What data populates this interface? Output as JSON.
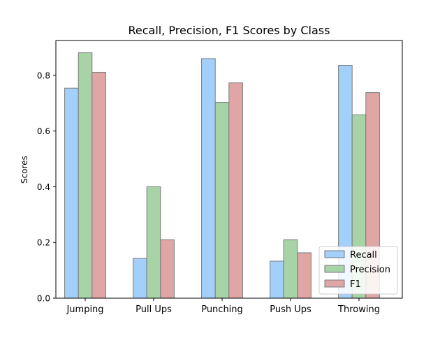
{
  "chart_data": {
    "type": "bar",
    "title": "Recall, Precision, F1 Scores by Class",
    "xlabel": "",
    "ylabel": "Scores",
    "categories": [
      "Jumping",
      "Pull Ups",
      "Punching",
      "Push Ups",
      "Throwing"
    ],
    "series": [
      {
        "name": "Recall",
        "values": [
          0.754,
          0.143,
          0.86,
          0.133,
          0.836
        ],
        "color": "#a3cffb"
      },
      {
        "name": "Precision",
        "values": [
          0.881,
          0.4,
          0.703,
          0.21,
          0.658
        ],
        "color": "#a7d3a7"
      },
      {
        "name": "F1",
        "values": [
          0.811,
          0.21,
          0.773,
          0.163,
          0.738
        ],
        "color": "#e0a5a5"
      }
    ],
    "ylim": [
      0,
      0.925
    ],
    "yticks": [
      0.0,
      0.2,
      0.4,
      0.6,
      0.8
    ],
    "ytick_labels": [
      "0.0",
      "0.2",
      "0.4",
      "0.6",
      "0.8"
    ],
    "legend_position": "lower-right",
    "grid": false
  }
}
